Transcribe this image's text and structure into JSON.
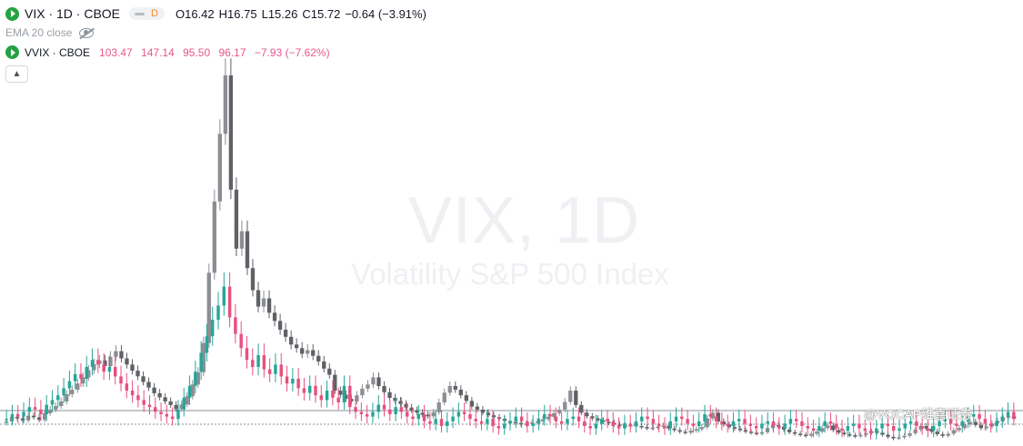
{
  "legend": {
    "main_title": "VIX · 1D · CBOE",
    "interval_badge": "D",
    "open_label": "O",
    "open": "16.42",
    "high_label": "H",
    "high": "16.75",
    "low_label": "L",
    "low": "15.26",
    "close_label": "C",
    "close": "15.72",
    "change": "−0.64 (−3.91%)",
    "indicator": "EMA 20 close",
    "second_title": "VVIX · CBOE",
    "second_values": [
      "103.47",
      "147.14",
      "95.50",
      "96.17",
      "−7.93 (−7.62%)"
    ],
    "collapse_icon": "chevron-up-icon"
  },
  "watermark": {
    "title": "VIX, 1D",
    "subtitle": "Volatility S&P 500 Index"
  },
  "credit": "@VOCAP维喜证券",
  "colors": {
    "vix_candle": "#5f6166",
    "vvix_up": "#26a69a",
    "vvix_down": "#e8507f",
    "legend_accent": "#e8568d",
    "symbol_icon": "#26a143"
  },
  "chart_data": {
    "type": "candlestick",
    "series": [
      {
        "name": "VIX",
        "values": [
          15.2,
          16.1,
          15.8,
          15.4,
          16.3,
          16.0,
          15.5,
          16.8,
          17.5,
          18.2,
          19.1,
          20.5,
          21.4,
          22.6,
          23.8,
          25.2,
          26.4,
          27.1,
          26.0,
          27.8,
          28.9,
          27.5,
          26.3,
          25.1,
          24.0,
          22.9,
          21.8,
          20.7,
          19.9,
          19.1,
          18.4,
          17.6,
          18.5,
          20.1,
          22.4,
          24.8,
          30.5,
          44.2,
          58.1,
          71.3,
          82.7,
          60.4,
          48.9,
          52.3,
          45.1,
          40.8,
          37.6,
          39.2,
          36.4,
          34.8,
          33.1,
          31.7,
          30.2,
          29.5,
          28.4,
          29.1,
          28.0,
          26.9,
          25.5,
          24.3,
          21.2,
          20.4,
          19.6,
          19.1,
          20.3,
          21.6,
          22.4,
          23.8,
          22.1,
          20.9,
          19.8,
          19.2,
          18.6,
          17.9,
          17.4,
          16.9,
          16.5,
          16.2,
          17.0,
          18.9,
          20.8,
          22.1,
          21.4,
          20.3,
          19.2,
          18.1,
          17.5,
          16.9,
          16.4,
          16.0,
          15.7,
          15.3,
          15.1,
          14.9,
          14.6,
          14.8,
          15.0,
          15.2,
          15.6,
          16.1,
          16.8,
          17.5,
          19.0,
          21.2,
          18.4,
          16.9,
          16.2,
          15.8,
          15.4,
          15.1,
          14.9,
          14.6,
          14.4,
          14.2,
          14.5,
          14.3,
          14.1,
          13.9,
          14.0,
          14.2,
          14.4,
          13.8,
          13.5,
          13.2,
          13.0,
          13.4,
          13.7,
          14.1,
          15.8,
          16.9,
          15.2,
          14.6,
          14.1,
          13.8,
          13.5,
          13.2,
          13.0,
          12.8,
          13.1,
          13.9,
          14.5,
          14.2,
          13.6,
          13.1,
          12.8,
          12.6,
          12.4,
          12.8,
          13.2,
          13.9,
          14.4,
          13.5,
          13.0,
          12.7,
          12.5,
          12.3,
          12.6,
          12.9,
          13.3,
          13.0,
          12.6,
          12.2,
          11.9,
          12.1,
          12.4,
          12.9,
          13.6,
          14.3,
          13.8,
          13.2,
          12.7,
          12.4,
          12.8,
          13.5,
          13.9,
          14.6,
          15.1,
          14.5,
          13.9,
          14.2,
          14.8,
          15.3,
          16.0,
          16.2,
          15.7
        ]
      },
      {
        "name": "VVIX",
        "values": [
          96,
          98,
          97,
          99,
          101,
          100,
          98,
          102,
          104,
          106,
          109,
          112,
          115,
          113,
          118,
          121,
          119,
          116,
          118,
          114,
          111,
          108,
          106,
          104,
          102,
          101,
          99,
          98,
          97,
          96,
          100,
          105,
          110,
          116,
          124,
          131,
          138,
          144,
          152,
          139,
          132,
          126,
          121,
          118,
          123,
          117,
          115,
          119,
          114,
          111,
          113,
          109,
          107,
          110,
          106,
          104,
          108,
          105,
          103,
          110,
          101,
          99,
          98,
          97,
          99,
          102,
          100,
          98,
          101,
          99,
          97,
          96,
          98,
          95,
          94,
          96,
          93,
          95,
          97,
          99,
          98,
          96,
          95,
          94,
          96,
          93,
          92,
          94,
          95,
          97,
          95,
          93,
          94,
          96,
          98,
          97,
          95,
          94,
          96,
          97,
          95,
          93,
          92,
          94,
          96,
          95,
          93,
          92,
          94,
          93,
          95,
          97,
          96,
          94,
          93,
          92,
          95,
          97,
          96,
          94,
          93,
          95,
          98,
          97,
          95,
          94,
          93,
          95,
          96,
          94,
          93,
          92,
          94,
          95,
          93,
          92,
          94,
          96,
          95,
          93,
          92,
          91,
          93,
          95,
          94,
          92,
          91,
          93,
          94,
          92,
          91,
          90,
          92,
          94,
          93,
          91,
          92,
          94,
          95,
          93,
          92,
          91,
          93,
          95,
          96,
          94,
          93,
          95,
          97,
          98,
          96,
          94,
          93,
          95,
          97,
          99,
          96
        ]
      }
    ],
    "xlabel": "",
    "ylabel": "",
    "grid": false
  }
}
